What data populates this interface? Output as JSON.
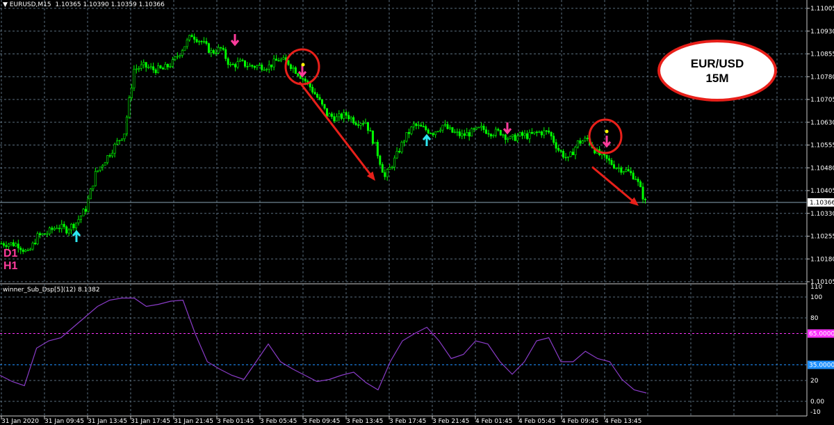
{
  "header": {
    "symbol_label": "EURUSD,M15",
    "open": "1.10365",
    "high": "1.10390",
    "low": "1.10359",
    "close": "1.10366"
  },
  "colors": {
    "bull": "#00ff00",
    "bear": "#00ff00",
    "grid": "#5a6e7e",
    "bid_line": "#8aa6b6",
    "indicator_line": "#8a3cc8",
    "level_65": "#ff33ff",
    "level_35": "#1e90ff",
    "arrow_annotation": "#e8201a",
    "signal_down": "#ff3c9c",
    "signal_up": "#2ee6f0",
    "signal_dot": "#ffff00"
  },
  "price_axis": {
    "ticks": [
      "1.11005",
      "1.10930",
      "1.10855",
      "1.10780",
      "1.10705",
      "1.10630",
      "1.10555",
      "1.10480",
      "1.10405",
      "1.10330",
      "1.10255",
      "1.10180",
      "1.10105"
    ],
    "current": "1.10366"
  },
  "time_axis": {
    "ticks": [
      "31 Jan 2020",
      "31 Jan 09:45",
      "31 Jan 13:45",
      "31 Jan 17:45",
      "31 Jan 21:45",
      "3 Feb 01:45",
      "3 Feb 05:45",
      "3 Feb 09:45",
      "3 Feb 13:45",
      "3 Feb 17:45",
      "3 Feb 21:45",
      "4 Feb 01:45",
      "4 Feb 05:45",
      "4 Feb 09:45",
      "4 Feb 13:45"
    ]
  },
  "indicator": {
    "title": "winner_Sub_Dsp[5](12) 8.1382",
    "axis_ticks": [
      "110",
      "100",
      "80",
      "20",
      "0.00",
      "-10"
    ],
    "level_high": "65.0000",
    "level_low": "35.0000"
  },
  "labels": {
    "d1": "D1",
    "h1": "H1"
  },
  "bubble": {
    "line1": "EUR/USD",
    "line2": "15M"
  },
  "chart_data": {
    "type": "candlestick",
    "price_closes_hourly": [
      1.10231,
      1.10231,
      1.10227,
      1.10197,
      1.10254,
      1.10265,
      1.10288,
      1.10277,
      1.103,
      1.10345,
      1.1046,
      1.10506,
      1.10552,
      1.10597,
      1.10804,
      1.10815,
      1.10804,
      1.10804,
      1.10826,
      1.10872,
      1.10918,
      1.10895,
      1.10861,
      1.10872,
      1.10815,
      1.10826,
      1.10815,
      1.10815,
      1.10815,
      1.10837,
      1.10826,
      1.10792,
      1.10758,
      1.10712,
      1.10655,
      1.10643,
      1.10655,
      1.10632,
      1.10632,
      1.10552,
      1.10449,
      1.10506,
      1.10574,
      1.1062,
      1.10609,
      1.10597,
      1.1062,
      1.10597,
      1.10586,
      1.10597,
      1.10609,
      1.10597,
      1.10597,
      1.10574,
      1.10586,
      1.10586,
      1.10597,
      1.10597,
      1.1054,
      1.10506,
      1.10563,
      1.10574,
      1.10529,
      1.10506,
      1.10483,
      1.10471,
      1.10449,
      1.10366
    ],
    "indicator_values": [
      25,
      19,
      15,
      51,
      58,
      61,
      71,
      81,
      91,
      97,
      99,
      99,
      91,
      93,
      96,
      97,
      65,
      38,
      31,
      25,
      21,
      38,
      55,
      38,
      31,
      25,
      19,
      21,
      25,
      28,
      18,
      11,
      38,
      58,
      65,
      71,
      58,
      41,
      45,
      58,
      55,
      38,
      26,
      38,
      58,
      61,
      38,
      38,
      48,
      41,
      38,
      21,
      11,
      8
    ],
    "indicator_range": [
      -10,
      110
    ],
    "price_range": [
      1.10105,
      1.11005
    ],
    "signals": [
      {
        "type": "down",
        "price": 1.109
      },
      {
        "type": "down",
        "price": 1.108
      },
      {
        "type": "down",
        "price": 1.1061
      },
      {
        "type": "down",
        "price": 1.1057
      },
      {
        "type": "up",
        "price": 1.1027
      },
      {
        "type": "up",
        "price": 1.1057
      }
    ]
  }
}
